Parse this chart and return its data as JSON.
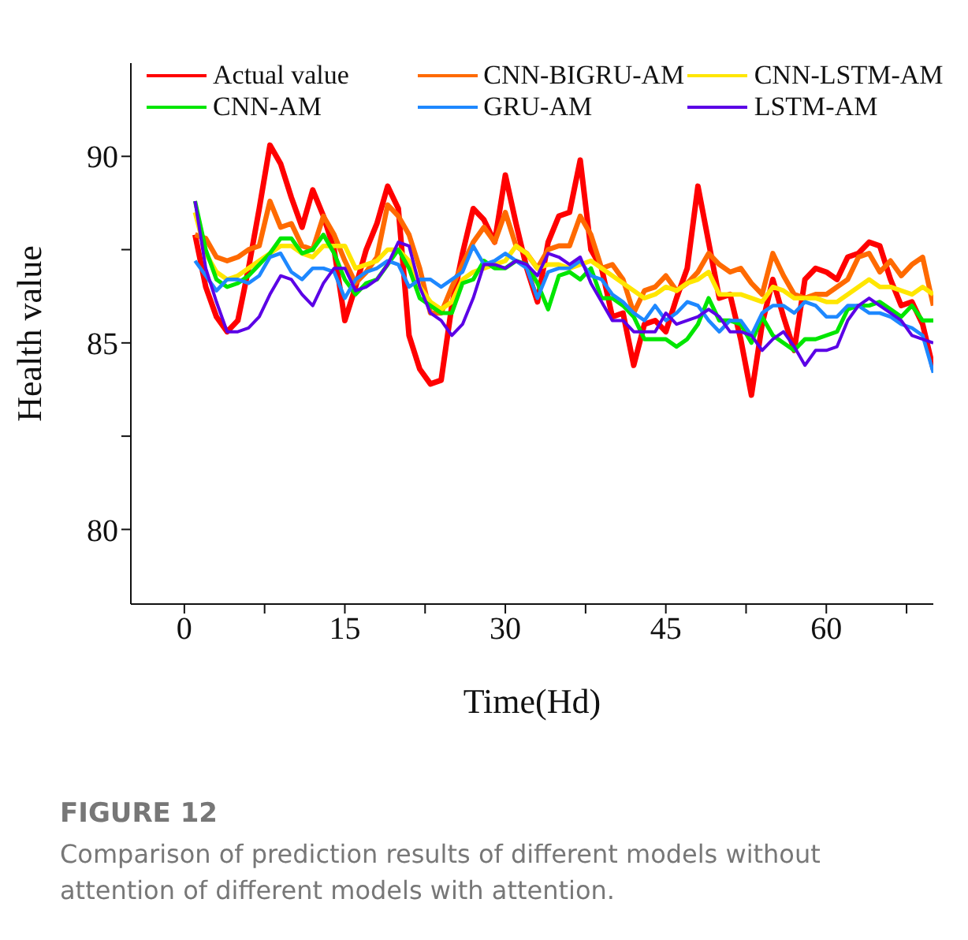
{
  "chart_data": {
    "type": "line",
    "title": "FIGURE 12",
    "subtitle": "Comparison of prediction results of different models without attention of different models with attention.",
    "xlabel": "Time(Hd)",
    "ylabel": "Health value",
    "legend": "top",
    "x": [
      1,
      2,
      3,
      4,
      5,
      6,
      7,
      8,
      9,
      10,
      11,
      12,
      13,
      14,
      15,
      16,
      17,
      18,
      19,
      20,
      21,
      22,
      23,
      24,
      25,
      26,
      27,
      28,
      29,
      30,
      31,
      32,
      33,
      34,
      35,
      36,
      37,
      38,
      39,
      40,
      41,
      42,
      43,
      44,
      45,
      46,
      47,
      48,
      49,
      50,
      51,
      52,
      53,
      54,
      55,
      56,
      57,
      58,
      59,
      60,
      61,
      62,
      63,
      64,
      65,
      66,
      67,
      68,
      69,
      70
    ],
    "xlim": [
      -5,
      70
    ],
    "xticks": [
      0,
      {
        "value": 7.5,
        "label": null
      },
      15,
      {
        "value": 22.5,
        "label": null
      },
      30,
      {
        "value": 37.5,
        "label": null
      },
      45,
      {
        "value": 52.5,
        "label": null
      },
      60,
      {
        "value": 67.5,
        "label": null
      }
    ],
    "ylim": [
      78,
      92.5
    ],
    "yticks": [
      80,
      {
        "value": 82.5,
        "label": null
      },
      85,
      {
        "value": 87.5,
        "label": null
      },
      90
    ],
    "series": [
      {
        "name": "Actual value",
        "color": "#ff0000",
        "values": [
          87.9,
          86.5,
          85.7,
          85.3,
          85.6,
          87.0,
          88.6,
          90.3,
          89.8,
          88.9,
          88.1,
          89.1,
          88.4,
          87.5,
          85.6,
          86.5,
          87.5,
          88.2,
          89.2,
          88.6,
          85.2,
          84.3,
          83.9,
          84.0,
          86.0,
          87.4,
          88.6,
          88.3,
          87.7,
          89.5,
          88.2,
          87.0,
          86.1,
          87.7,
          88.4,
          88.5,
          89.9,
          87.5,
          87.0,
          85.7,
          85.8,
          84.4,
          85.5,
          85.6,
          85.3,
          86.2,
          87.0,
          89.2,
          87.7,
          86.2,
          86.3,
          85.1,
          83.6,
          85.5,
          86.7,
          85.7,
          84.8,
          86.7,
          87.0,
          86.9,
          86.7,
          87.3,
          87.4,
          87.7,
          87.6,
          86.7,
          86.0,
          86.1,
          85.5,
          84.3
        ]
      },
      {
        "name": "CNN-BIGRU-AM",
        "color": "#ff6a00",
        "values": [
          87.9,
          87.8,
          87.3,
          87.2,
          87.3,
          87.5,
          87.6,
          88.8,
          88.1,
          88.2,
          87.6,
          87.5,
          88.4,
          87.9,
          87.2,
          86.6,
          86.9,
          87.3,
          88.7,
          88.4,
          87.9,
          87.0,
          85.8,
          85.8,
          86.5,
          87.1,
          87.7,
          88.1,
          87.7,
          88.5,
          87.6,
          87.4,
          87.0,
          87.5,
          87.6,
          87.6,
          88.4,
          87.9,
          87.0,
          87.1,
          86.7,
          85.8,
          86.4,
          86.5,
          86.8,
          86.4,
          86.6,
          86.9,
          87.4,
          87.1,
          86.9,
          87.0,
          86.6,
          86.3,
          87.4,
          86.8,
          86.3,
          86.2,
          86.3,
          86.3,
          86.5,
          86.7,
          87.3,
          87.4,
          86.9,
          87.2,
          86.8,
          87.1,
          87.3,
          86.0
        ]
      },
      {
        "name": "CNN-LSTM-AM",
        "color": "#ffe600",
        "values": [
          88.5,
          87.4,
          86.9,
          86.7,
          86.8,
          87.0,
          87.2,
          87.4,
          87.6,
          87.6,
          87.4,
          87.3,
          87.6,
          87.6,
          87.6,
          87.0,
          87.1,
          87.2,
          87.5,
          87.5,
          87.2,
          86.5,
          86.1,
          85.9,
          86.1,
          86.7,
          86.9,
          87.0,
          87.1,
          87.2,
          87.6,
          87.4,
          87.0,
          87.1,
          87.1,
          87.0,
          87.1,
          87.2,
          87.0,
          86.8,
          86.6,
          86.4,
          86.2,
          86.3,
          86.5,
          86.4,
          86.6,
          86.7,
          86.9,
          86.3,
          86.3,
          86.3,
          86.2,
          86.1,
          86.5,
          86.4,
          86.2,
          86.2,
          86.2,
          86.1,
          86.1,
          86.3,
          86.5,
          86.7,
          86.5,
          86.5,
          86.4,
          86.3,
          86.5,
          86.3
        ]
      },
      {
        "name": "CNN-AM",
        "color": "#00e600",
        "values": [
          88.8,
          87.5,
          86.7,
          86.5,
          86.6,
          86.8,
          87.1,
          87.4,
          87.8,
          87.8,
          87.4,
          87.5,
          87.9,
          87.4,
          86.7,
          86.3,
          86.6,
          86.7,
          87.1,
          87.5,
          87.0,
          86.2,
          86.0,
          85.8,
          85.8,
          86.6,
          86.7,
          87.2,
          87.0,
          87.0,
          87.2,
          87.1,
          86.6,
          85.9,
          86.8,
          86.9,
          86.7,
          87.0,
          86.2,
          86.2,
          86.0,
          85.7,
          85.1,
          85.1,
          85.1,
          84.9,
          85.1,
          85.5,
          86.2,
          85.6,
          85.6,
          85.5,
          85.0,
          85.7,
          85.2,
          85.0,
          84.8,
          85.1,
          85.1,
          85.2,
          85.3,
          85.9,
          86.0,
          86.0,
          86.1,
          85.9,
          85.7,
          86.0,
          85.6,
          85.6
        ]
      },
      {
        "name": "GRU-AM",
        "color": "#1e88ff",
        "values": [
          87.2,
          86.8,
          86.4,
          86.7,
          86.7,
          86.6,
          86.8,
          87.3,
          87.4,
          86.9,
          86.7,
          87.0,
          87.0,
          86.9,
          86.2,
          86.7,
          86.9,
          87.0,
          87.2,
          87.1,
          86.5,
          86.7,
          86.7,
          86.5,
          86.7,
          86.9,
          87.6,
          87.1,
          87.2,
          87.4,
          87.2,
          87.0,
          86.2,
          86.9,
          87.0,
          87.0,
          87.2,
          86.8,
          86.7,
          86.3,
          86.1,
          85.8,
          85.6,
          86.0,
          85.6,
          85.8,
          86.1,
          86.0,
          85.6,
          85.3,
          85.6,
          85.6,
          85.2,
          85.8,
          86.0,
          86.0,
          85.8,
          86.1,
          86.0,
          85.7,
          85.7,
          86.0,
          86.0,
          85.8,
          85.8,
          85.7,
          85.5,
          85.4,
          85.2,
          84.2
        ]
      },
      {
        "name": "LSTM-AM",
        "color": "#5b00e6",
        "values": [
          88.8,
          87.0,
          86.1,
          85.3,
          85.3,
          85.4,
          85.7,
          86.3,
          86.8,
          86.7,
          86.3,
          86.0,
          86.6,
          87.0,
          87.0,
          86.4,
          86.5,
          86.7,
          87.1,
          87.7,
          87.6,
          86.5,
          85.8,
          85.6,
          85.2,
          85.5,
          86.2,
          87.1,
          87.1,
          87.0,
          87.2,
          87.1,
          86.8,
          87.4,
          87.3,
          87.1,
          87.3,
          86.6,
          86.1,
          85.6,
          85.6,
          85.3,
          85.3,
          85.3,
          85.8,
          85.5,
          85.6,
          85.7,
          85.9,
          85.7,
          85.3,
          85.3,
          85.2,
          84.8,
          85.1,
          85.3,
          84.9,
          84.4,
          84.8,
          84.8,
          84.9,
          85.6,
          86.0,
          86.2,
          86.0,
          85.8,
          85.6,
          85.2,
          85.1,
          85.0
        ]
      }
    ]
  }
}
